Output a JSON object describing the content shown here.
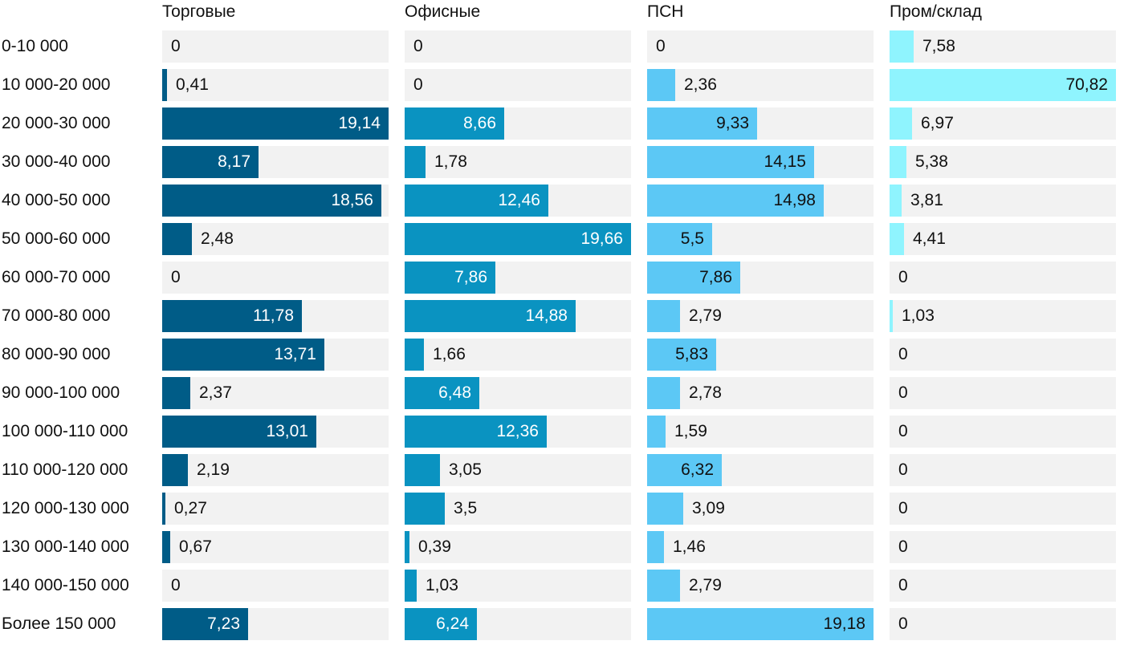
{
  "chart_data": {
    "type": "bar",
    "orientation": "horizontal",
    "layout": "small-multiples",
    "categories": [
      "0-10 000",
      "10 000-20 000",
      "20 000-30 000",
      "30 000-40 000",
      "40 000-50 000",
      "50 000-60 000",
      "60 000-70 000",
      "70 000-80 000",
      "80 000-90 000",
      "90 000-100 000",
      "100 000-110 000",
      "110 000-120 000",
      "120 000-130 000",
      "130 000-140 000",
      "140 000-150 000",
      "Более 150 000"
    ],
    "series": [
      {
        "name": "Торговые",
        "color": "#005c87",
        "max": 19.14,
        "values": [
          0,
          0.41,
          19.14,
          8.17,
          18.56,
          2.48,
          0,
          11.78,
          13.71,
          2.37,
          13.01,
          2.19,
          0.27,
          0.67,
          0,
          7.23
        ],
        "labels": [
          "0",
          "0,41",
          "19,14",
          "8,17",
          "18,56",
          "2,48",
          "0",
          "11,78",
          "13,71",
          "2,37",
          "13,01",
          "2,19",
          "0,27",
          "0,67",
          "0",
          "7,23"
        ]
      },
      {
        "name": "Офисные",
        "color": "#0a93c1",
        "max": 19.66,
        "values": [
          0,
          0,
          8.66,
          1.78,
          12.46,
          19.66,
          7.86,
          14.88,
          1.66,
          6.48,
          12.36,
          3.05,
          3.5,
          0.39,
          1.03,
          6.24
        ],
        "labels": [
          "0",
          "0",
          "8,66",
          "1,78",
          "12,46",
          "19,66",
          "7,86",
          "14,88",
          "1,66",
          "6,48",
          "12,36",
          "3,05",
          "3,5",
          "0,39",
          "1,03",
          "6,24"
        ]
      },
      {
        "name": "ПСН",
        "color": "#5cc8f5",
        "max": 19.18,
        "values": [
          0,
          2.36,
          9.33,
          14.15,
          14.98,
          5.5,
          7.86,
          2.79,
          5.83,
          2.78,
          1.59,
          6.32,
          3.09,
          1.46,
          2.79,
          19.18
        ],
        "labels": [
          "0",
          "2,36",
          "9,33",
          "14,15",
          "14,98",
          "5,5",
          "7,86",
          "2,79",
          "5,83",
          "2,78",
          "1,59",
          "6,32",
          "3,09",
          "1,46",
          "2,79",
          "19,18"
        ]
      },
      {
        "name": "Пром/склад",
        "color": "#8ff4fe",
        "max": 70.82,
        "values": [
          7.58,
          70.82,
          6.97,
          5.38,
          3.81,
          4.41,
          0,
          1.03,
          0,
          0,
          0,
          0,
          0,
          0,
          0,
          0
        ],
        "labels": [
          "7,58",
          "70,82",
          "6,97",
          "5,38",
          "3,81",
          "4,41",
          "0",
          "1,03",
          "0",
          "0",
          "0",
          "0",
          "0",
          "0",
          "0",
          "0"
        ]
      }
    ],
    "title": "",
    "xlabel": "",
    "ylabel": "",
    "grid": false
  }
}
